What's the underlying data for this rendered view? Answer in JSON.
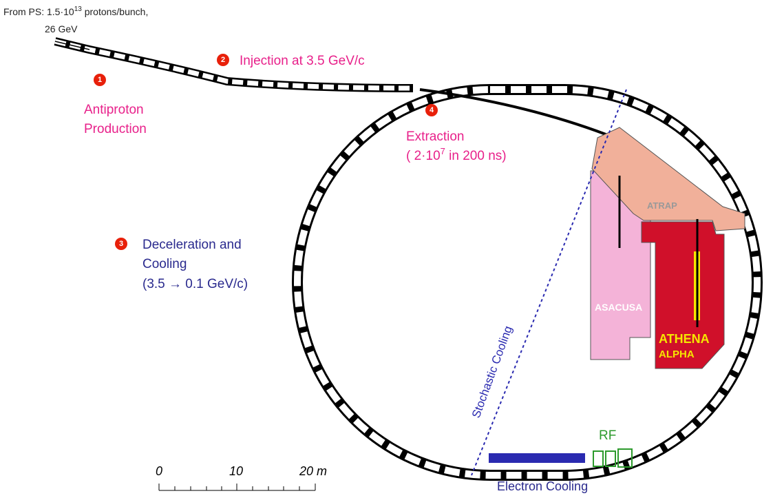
{
  "source": {
    "line1_before": "From PS: 1.5·10",
    "line1_sup": "13",
    "line1_after": " protons/bunch,",
    "line2": "26 GeV"
  },
  "steps": [
    {
      "number": "1",
      "lines": [
        "Antiproton",
        "Production"
      ]
    },
    {
      "number": "2",
      "lines": [
        "Injection at 3.5 GeV/c"
      ]
    },
    {
      "number": "3",
      "lines": [
        "Deceleration and",
        "Cooling",
        "(3.5 → 0.1 GeV/c)"
      ]
    },
    {
      "number": "4",
      "lines": [
        "Extraction"
      ],
      "detail_before": "( 2·10",
      "detail_sup": "7",
      "detail_after": " in 200 ns)"
    }
  ],
  "labels": {
    "stochastic": "Stochastic Cooling",
    "electron": "Electron Cooling",
    "rf": "RF"
  },
  "experiments": {
    "atrap": "ATRAP",
    "asacusa": "ASACUSA",
    "athena": "ATHENA",
    "alpha": "ALPHA"
  },
  "scale": {
    "ticks": [
      "0",
      "10",
      "20 m"
    ]
  }
}
